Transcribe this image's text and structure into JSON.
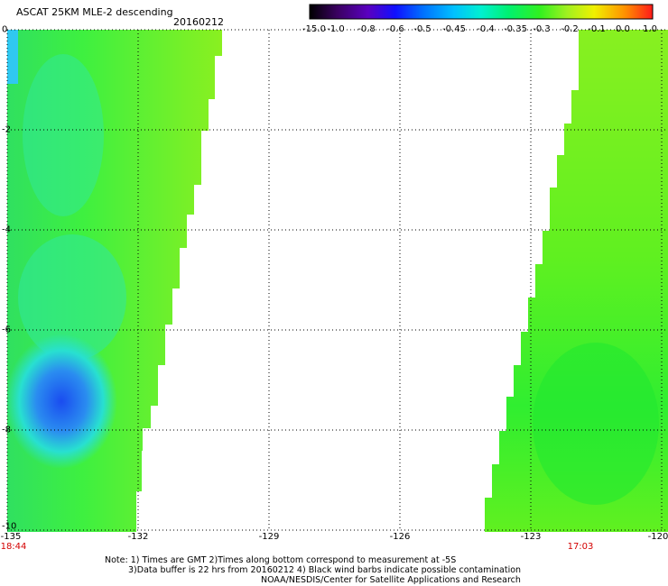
{
  "header": {
    "title": "ASCAT 25KM MLE-2 descending",
    "date": "20160212"
  },
  "colorbar": {
    "labels": [
      "-15.0",
      "-1.0",
      "-0.8",
      "-0.6",
      "-0.5",
      "-0.45",
      "-0.4",
      "-0.35",
      "-0.3",
      "-0.2",
      "-0.1",
      "0.0",
      "1.0"
    ]
  },
  "axes": {
    "y_labels": [
      "0",
      "-2",
      "-4",
      "-6",
      "-8",
      "-10"
    ],
    "x_labels": [
      "-135",
      "-132",
      "-129",
      "-126",
      "-123",
      "-120"
    ]
  },
  "times": {
    "left": "18:44",
    "right": "17:03"
  },
  "notes": {
    "line1": "Note: 1) Times are GMT 2)Times along bottom correspond to measurement at -5S",
    "line2": "3)Data buffer is 22 hrs from 20160212 4) Black wind barbs indicate possible contamination",
    "line3": "NOAA/NESDIS/Center for Satellite Applications and Research"
  },
  "colors": {
    "background": "#ffffff",
    "green": "#22ee22",
    "lime": "#88f020",
    "cyan": "#22eeaa",
    "blue": "#2060f0",
    "time_red": "#d40000"
  }
}
